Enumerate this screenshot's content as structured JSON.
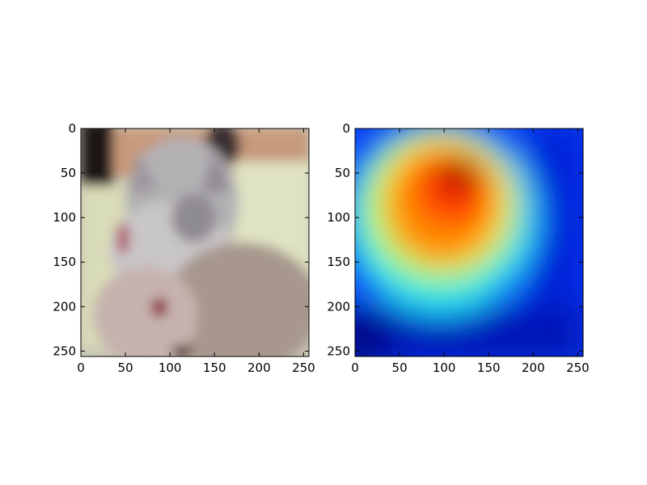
{
  "chart_data": [
    {
      "type": "image",
      "content": "blurry photo of a grey tabby cat",
      "xlim": [
        0,
        256
      ],
      "ylim": [
        256,
        0
      ],
      "xticks": [
        0,
        50,
        100,
        150,
        200,
        250
      ],
      "yticks": [
        0,
        50,
        100,
        150,
        200,
        250
      ],
      "xtick_labels": [
        "0",
        "50",
        "100",
        "150",
        "200",
        "250"
      ],
      "ytick_labels": [
        "0",
        "50",
        "100",
        "150",
        "200",
        "250"
      ],
      "grid": false
    },
    {
      "type": "heatmap",
      "colormap": "jet",
      "xlim": [
        0,
        256
      ],
      "ylim": [
        256,
        0
      ],
      "xticks": [
        0,
        50,
        100,
        150,
        200,
        250
      ],
      "yticks": [
        0,
        50,
        100,
        150,
        200,
        250
      ],
      "xtick_labels": [
        "0",
        "50",
        "100",
        "150",
        "200",
        "250"
      ],
      "ytick_labels": [
        "0",
        "50",
        "100",
        "150",
        "200",
        "250"
      ],
      "grid": false,
      "peak": {
        "x": 118,
        "y": 50
      },
      "hot_region_x": [
        35,
        170
      ],
      "hot_region_y": [
        15,
        190
      ]
    }
  ]
}
